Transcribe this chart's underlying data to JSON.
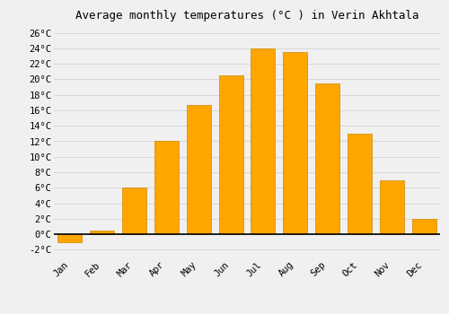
{
  "months": [
    "Jan",
    "Feb",
    "Mar",
    "Apr",
    "May",
    "Jun",
    "Jul",
    "Aug",
    "Sep",
    "Oct",
    "Nov",
    "Dec"
  ],
  "values": [
    -1.0,
    0.5,
    6.0,
    12.0,
    16.7,
    20.5,
    24.0,
    23.5,
    19.5,
    13.0,
    7.0,
    2.0
  ],
  "bar_color": "#FFA500",
  "bar_edge_color": "#CC8800",
  "title": "Average monthly temperatures (°C ) in Verin Akhtala",
  "ylim": [
    -3,
    27
  ],
  "yticks": [
    -2,
    0,
    2,
    4,
    6,
    8,
    10,
    12,
    14,
    16,
    18,
    20,
    22,
    24,
    26
  ],
  "ytick_labels": [
    "-2°C",
    "0°C",
    "2°C",
    "4°C",
    "6°C",
    "8°C",
    "10°C",
    "12°C",
    "14°C",
    "16°C",
    "18°C",
    "20°C",
    "22°C",
    "24°C",
    "26°C"
  ],
  "background_color": "#f0f0f0",
  "grid_color": "#d8d8d8",
  "title_fontsize": 9,
  "tick_fontsize": 7.5,
  "font_family": "monospace"
}
